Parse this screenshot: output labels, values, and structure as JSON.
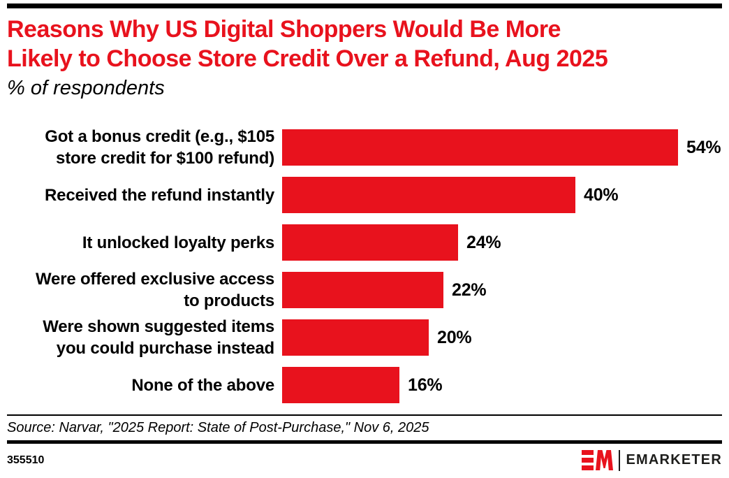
{
  "header": {
    "title_lines": [
      "Reasons Why US Digital Shoppers Would Be More",
      "Likely to Choose Store Credit Over a Refund, Aug 2025"
    ],
    "subtitle": "% of respondents"
  },
  "chart_data": {
    "type": "bar",
    "orientation": "horizontal",
    "title": "Reasons Why US Digital Shoppers Would Be More Likely to Choose Store Credit Over a Refund, Aug 2025",
    "subtitle": "% of respondents",
    "xlabel": "",
    "ylabel": "",
    "xlim": [
      0,
      60
    ],
    "grid": false,
    "legend": false,
    "bar_color": "#E8121D",
    "value_suffix": "%",
    "categories": [
      [
        "Got a bonus credit (e.g., $105",
        "store credit for $100 refund)"
      ],
      [
        "Received the refund instantly"
      ],
      [
        "It unlocked loyalty perks"
      ],
      [
        "Were offered exclusive access",
        "to products"
      ],
      [
        "Were shown suggested items",
        "you could purchase instead"
      ],
      [
        "None of the above"
      ]
    ],
    "values": [
      54,
      40,
      24,
      22,
      20,
      16
    ]
  },
  "footer": {
    "source": "Source: Narvar, \"2025 Report: State of Post-Purchase,\" Nov 6, 2025",
    "chart_id": "355510",
    "brand_name": "EMARKETER"
  },
  "colors": {
    "accent_red": "#E8121D",
    "black": "#000000"
  }
}
